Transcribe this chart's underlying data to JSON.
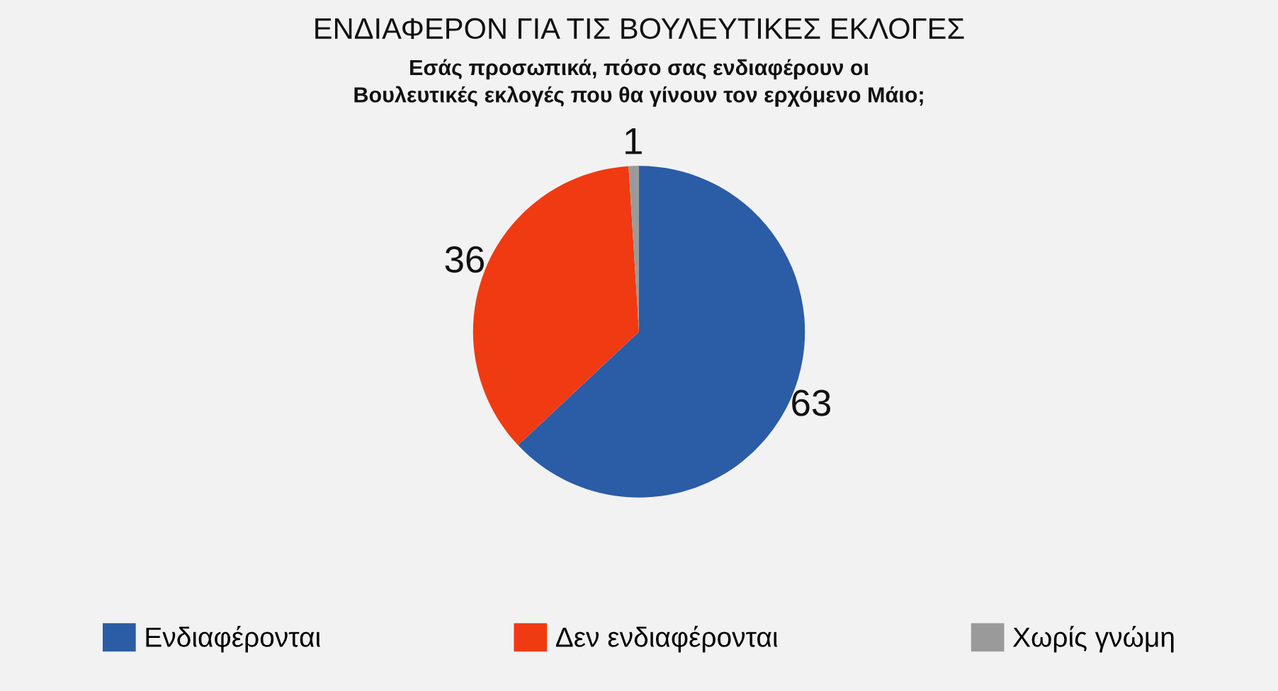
{
  "chart_data": {
    "type": "pie",
    "title": "ΕΝΔΙΑΦΕΡΟΝ ΓΙΑ ΤΙΣ ΒΟΥΛΕΥΤΙΚΕΣ ΕΚΛΟΓΕΣ",
    "subtitle": "Εσάς προσωπικά, πόσο σας ενδιαφέρουν οι\nΒουλευτικές εκλογές που θα γίνουν τον ερχόμενο Μάιο;",
    "categories": [
      "Ενδιαφέρονται",
      "Δεν ενδιαφέρονται",
      "Χωρίς γνώμη"
    ],
    "values": [
      63,
      36,
      1
    ],
    "colors": [
      "#2b5ca6",
      "#f03a12",
      "#9a9a9a"
    ],
    "data_labels": true,
    "legend": "bottom"
  }
}
